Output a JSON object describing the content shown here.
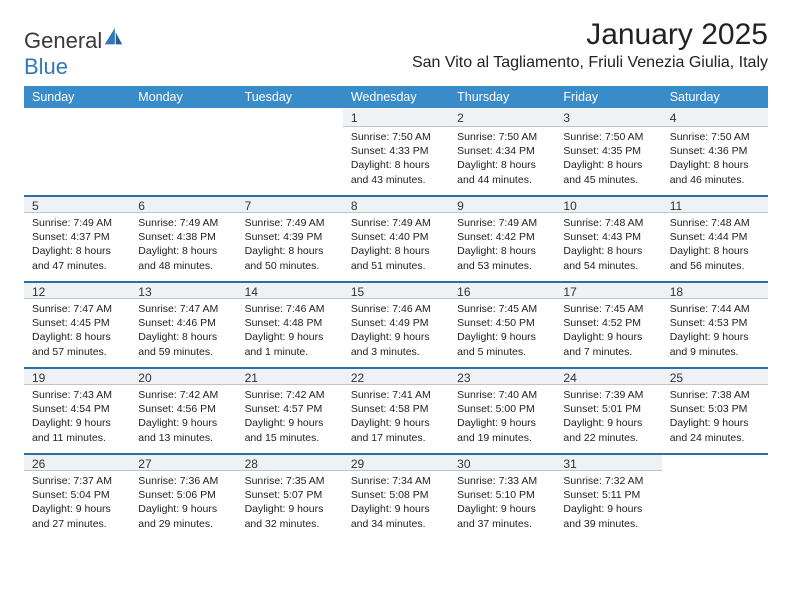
{
  "logo": {
    "word1": "General",
    "word2": "Blue"
  },
  "title": "January 2025",
  "location": "San Vito al Tagliamento, Friuli Venezia Giulia, Italy",
  "colors": {
    "header_bg": "#3a8cc9",
    "daynum_bg": "#eef2f5",
    "daynum_border": "#b9c6d3",
    "week_sep": "#2e6ea8",
    "logo_blue": "#3178b8"
  },
  "dow": [
    "Sunday",
    "Monday",
    "Tuesday",
    "Wednesday",
    "Thursday",
    "Friday",
    "Saturday"
  ],
  "weeks": [
    [
      {
        "n": "",
        "sr": "",
        "ss": "",
        "dl1": "",
        "dl2": ""
      },
      {
        "n": "",
        "sr": "",
        "ss": "",
        "dl1": "",
        "dl2": ""
      },
      {
        "n": "",
        "sr": "",
        "ss": "",
        "dl1": "",
        "dl2": ""
      },
      {
        "n": "1",
        "sr": "Sunrise: 7:50 AM",
        "ss": "Sunset: 4:33 PM",
        "dl1": "Daylight: 8 hours",
        "dl2": "and 43 minutes."
      },
      {
        "n": "2",
        "sr": "Sunrise: 7:50 AM",
        "ss": "Sunset: 4:34 PM",
        "dl1": "Daylight: 8 hours",
        "dl2": "and 44 minutes."
      },
      {
        "n": "3",
        "sr": "Sunrise: 7:50 AM",
        "ss": "Sunset: 4:35 PM",
        "dl1": "Daylight: 8 hours",
        "dl2": "and 45 minutes."
      },
      {
        "n": "4",
        "sr": "Sunrise: 7:50 AM",
        "ss": "Sunset: 4:36 PM",
        "dl1": "Daylight: 8 hours",
        "dl2": "and 46 minutes."
      }
    ],
    [
      {
        "n": "5",
        "sr": "Sunrise: 7:49 AM",
        "ss": "Sunset: 4:37 PM",
        "dl1": "Daylight: 8 hours",
        "dl2": "and 47 minutes."
      },
      {
        "n": "6",
        "sr": "Sunrise: 7:49 AM",
        "ss": "Sunset: 4:38 PM",
        "dl1": "Daylight: 8 hours",
        "dl2": "and 48 minutes."
      },
      {
        "n": "7",
        "sr": "Sunrise: 7:49 AM",
        "ss": "Sunset: 4:39 PM",
        "dl1": "Daylight: 8 hours",
        "dl2": "and 50 minutes."
      },
      {
        "n": "8",
        "sr": "Sunrise: 7:49 AM",
        "ss": "Sunset: 4:40 PM",
        "dl1": "Daylight: 8 hours",
        "dl2": "and 51 minutes."
      },
      {
        "n": "9",
        "sr": "Sunrise: 7:49 AM",
        "ss": "Sunset: 4:42 PM",
        "dl1": "Daylight: 8 hours",
        "dl2": "and 53 minutes."
      },
      {
        "n": "10",
        "sr": "Sunrise: 7:48 AM",
        "ss": "Sunset: 4:43 PM",
        "dl1": "Daylight: 8 hours",
        "dl2": "and 54 minutes."
      },
      {
        "n": "11",
        "sr": "Sunrise: 7:48 AM",
        "ss": "Sunset: 4:44 PM",
        "dl1": "Daylight: 8 hours",
        "dl2": "and 56 minutes."
      }
    ],
    [
      {
        "n": "12",
        "sr": "Sunrise: 7:47 AM",
        "ss": "Sunset: 4:45 PM",
        "dl1": "Daylight: 8 hours",
        "dl2": "and 57 minutes."
      },
      {
        "n": "13",
        "sr": "Sunrise: 7:47 AM",
        "ss": "Sunset: 4:46 PM",
        "dl1": "Daylight: 8 hours",
        "dl2": "and 59 minutes."
      },
      {
        "n": "14",
        "sr": "Sunrise: 7:46 AM",
        "ss": "Sunset: 4:48 PM",
        "dl1": "Daylight: 9 hours",
        "dl2": "and 1 minute."
      },
      {
        "n": "15",
        "sr": "Sunrise: 7:46 AM",
        "ss": "Sunset: 4:49 PM",
        "dl1": "Daylight: 9 hours",
        "dl2": "and 3 minutes."
      },
      {
        "n": "16",
        "sr": "Sunrise: 7:45 AM",
        "ss": "Sunset: 4:50 PM",
        "dl1": "Daylight: 9 hours",
        "dl2": "and 5 minutes."
      },
      {
        "n": "17",
        "sr": "Sunrise: 7:45 AM",
        "ss": "Sunset: 4:52 PM",
        "dl1": "Daylight: 9 hours",
        "dl2": "and 7 minutes."
      },
      {
        "n": "18",
        "sr": "Sunrise: 7:44 AM",
        "ss": "Sunset: 4:53 PM",
        "dl1": "Daylight: 9 hours",
        "dl2": "and 9 minutes."
      }
    ],
    [
      {
        "n": "19",
        "sr": "Sunrise: 7:43 AM",
        "ss": "Sunset: 4:54 PM",
        "dl1": "Daylight: 9 hours",
        "dl2": "and 11 minutes."
      },
      {
        "n": "20",
        "sr": "Sunrise: 7:42 AM",
        "ss": "Sunset: 4:56 PM",
        "dl1": "Daylight: 9 hours",
        "dl2": "and 13 minutes."
      },
      {
        "n": "21",
        "sr": "Sunrise: 7:42 AM",
        "ss": "Sunset: 4:57 PM",
        "dl1": "Daylight: 9 hours",
        "dl2": "and 15 minutes."
      },
      {
        "n": "22",
        "sr": "Sunrise: 7:41 AM",
        "ss": "Sunset: 4:58 PM",
        "dl1": "Daylight: 9 hours",
        "dl2": "and 17 minutes."
      },
      {
        "n": "23",
        "sr": "Sunrise: 7:40 AM",
        "ss": "Sunset: 5:00 PM",
        "dl1": "Daylight: 9 hours",
        "dl2": "and 19 minutes."
      },
      {
        "n": "24",
        "sr": "Sunrise: 7:39 AM",
        "ss": "Sunset: 5:01 PM",
        "dl1": "Daylight: 9 hours",
        "dl2": "and 22 minutes."
      },
      {
        "n": "25",
        "sr": "Sunrise: 7:38 AM",
        "ss": "Sunset: 5:03 PM",
        "dl1": "Daylight: 9 hours",
        "dl2": "and 24 minutes."
      }
    ],
    [
      {
        "n": "26",
        "sr": "Sunrise: 7:37 AM",
        "ss": "Sunset: 5:04 PM",
        "dl1": "Daylight: 9 hours",
        "dl2": "and 27 minutes."
      },
      {
        "n": "27",
        "sr": "Sunrise: 7:36 AM",
        "ss": "Sunset: 5:06 PM",
        "dl1": "Daylight: 9 hours",
        "dl2": "and 29 minutes."
      },
      {
        "n": "28",
        "sr": "Sunrise: 7:35 AM",
        "ss": "Sunset: 5:07 PM",
        "dl1": "Daylight: 9 hours",
        "dl2": "and 32 minutes."
      },
      {
        "n": "29",
        "sr": "Sunrise: 7:34 AM",
        "ss": "Sunset: 5:08 PM",
        "dl1": "Daylight: 9 hours",
        "dl2": "and 34 minutes."
      },
      {
        "n": "30",
        "sr": "Sunrise: 7:33 AM",
        "ss": "Sunset: 5:10 PM",
        "dl1": "Daylight: 9 hours",
        "dl2": "and 37 minutes."
      },
      {
        "n": "31",
        "sr": "Sunrise: 7:32 AM",
        "ss": "Sunset: 5:11 PM",
        "dl1": "Daylight: 9 hours",
        "dl2": "and 39 minutes."
      },
      {
        "n": "",
        "sr": "",
        "ss": "",
        "dl1": "",
        "dl2": ""
      }
    ]
  ]
}
